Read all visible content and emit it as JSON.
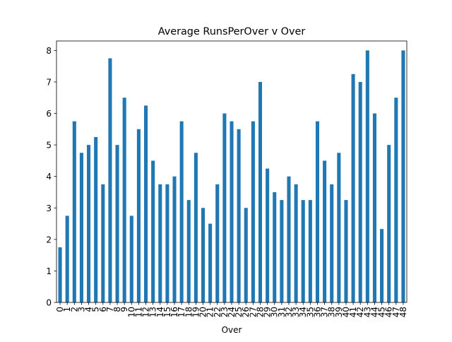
{
  "chart_data": {
    "type": "bar",
    "title": "Average RunsPerOver v Over",
    "xlabel": "Over",
    "ylabel": "",
    "ylim": [
      0,
      8.3
    ],
    "yticks": [
      0,
      1,
      2,
      3,
      4,
      5,
      6,
      7,
      8
    ],
    "grid": false,
    "legend": "none",
    "bar_color": "#1f77b4",
    "categories": [
      "0",
      "1",
      "2",
      "3",
      "4",
      "5",
      "6",
      "7",
      "8",
      "9",
      "10",
      "11",
      "12",
      "13",
      "14",
      "15",
      "16",
      "17",
      "18",
      "19",
      "20",
      "21",
      "22",
      "23",
      "24",
      "25",
      "26",
      "27",
      "28",
      "29",
      "30",
      "31",
      "32",
      "33",
      "34",
      "35",
      "36",
      "37",
      "38",
      "39",
      "40",
      "41",
      "42",
      "43",
      "44",
      "45",
      "46",
      "47",
      "48"
    ],
    "values": [
      1.75,
      2.75,
      5.75,
      4.75,
      5.0,
      5.25,
      3.75,
      7.75,
      5.0,
      6.5,
      2.75,
      5.5,
      6.25,
      4.5,
      3.75,
      3.75,
      4.0,
      5.75,
      3.25,
      4.75,
      3.0,
      2.5,
      3.75,
      6.0,
      5.75,
      5.5,
      3.0,
      5.75,
      7.0,
      4.25,
      3.5,
      3.25,
      4.0,
      3.75,
      3.25,
      3.25,
      5.75,
      4.5,
      3.75,
      4.75,
      3.25,
      7.25,
      7.0,
      8.0,
      6.0,
      2.33,
      5.0,
      6.5,
      8.0
    ]
  }
}
